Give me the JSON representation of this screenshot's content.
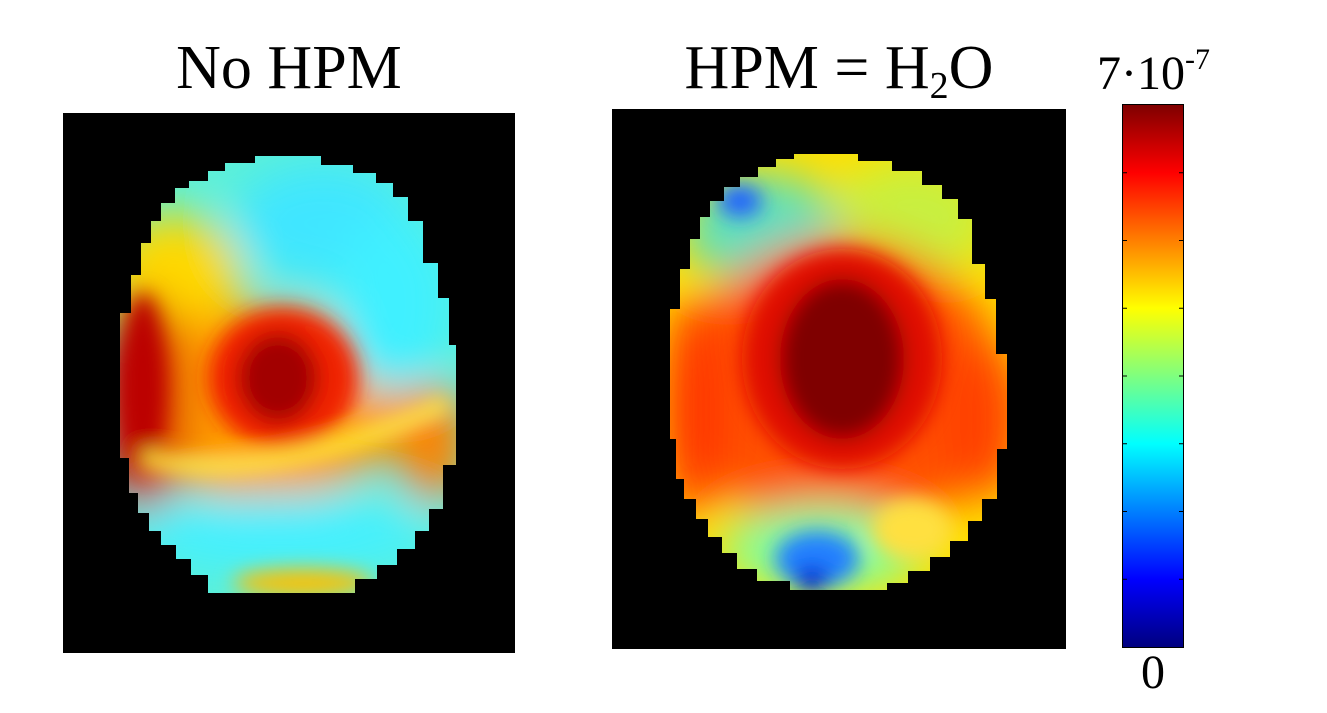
{
  "chart_data": [
    {
      "type": "heatmap",
      "title_parts": {
        "text": "No HPM"
      },
      "colormap": "jet",
      "background_color": "#000000",
      "vmin": 0,
      "vmax": 7e-07
    },
    {
      "type": "heatmap",
      "title_parts": {
        "prefix": "HPM = H",
        "subscript": "2",
        "suffix": "O"
      },
      "colormap": "jet",
      "background_color": "#000000",
      "vmin": 0,
      "vmax": 7e-07
    }
  ],
  "colorbar": {
    "max_label": {
      "base": "7·10",
      "exponent": "-7"
    },
    "min_label": "0",
    "colors": [
      "#00007f",
      "#0000ff",
      "#007fff",
      "#00ffff",
      "#7fff7f",
      "#ffff00",
      "#ff7f00",
      "#ff0000",
      "#7f0000"
    ],
    "tick_count": 7
  }
}
